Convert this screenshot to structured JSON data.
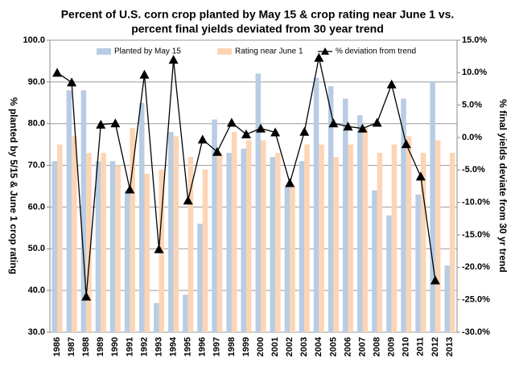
{
  "chart_data": {
    "type": "bar-line",
    "title": [
      "Percent of U.S. corn crop planted by May 15 & crop rating near June 1 vs.",
      "percent final yields deviated from 30 year trend"
    ],
    "y_label": "% planted by 5/15 & June 1 crop rating",
    "y2_label": "% final yields deviate from 30 yr trend",
    "categories": [
      "1986",
      "1987",
      "1988",
      "1989",
      "1990",
      "1991",
      "1992",
      "1993",
      "1994",
      "1995",
      "1996",
      "1997",
      "1998",
      "1999",
      "2000",
      "2001",
      "2002",
      "2003",
      "2004",
      "2005",
      "2006",
      "2007",
      "2008",
      "2009",
      "2010",
      "2011",
      "2012",
      "2013"
    ],
    "series": [
      {
        "name": "Planted by May 15",
        "color": "#b8cce4",
        "kind": "bar",
        "axis": "y",
        "values": [
          71,
          88,
          88,
          71,
          71,
          64,
          85,
          37,
          78,
          39,
          56,
          81,
          73,
          74,
          92,
          72,
          65,
          71,
          91,
          89,
          86,
          82,
          64,
          58,
          86,
          63,
          90,
          46
        ]
      },
      {
        "name": "Rating near June 1",
        "color": "#fcd5b5",
        "kind": "bar",
        "axis": "y",
        "values": [
          75,
          77,
          73,
          73,
          70,
          79,
          68,
          69,
          77,
          72,
          69,
          73,
          78,
          76,
          76,
          73,
          65,
          75,
          75,
          72,
          75,
          79,
          73,
          75,
          77,
          73,
          76,
          73
        ]
      },
      {
        "name": "% deviation from trend",
        "color": "#000000",
        "kind": "line",
        "axis": "y2",
        "values": [
          10,
          8.5,
          -24.5,
          2,
          2.2,
          -8,
          9.7,
          -17.2,
          12,
          -9.7,
          -0.3,
          -2.2,
          2.3,
          0.5,
          1.4,
          0.8,
          -7,
          0.9,
          12.3,
          2.2,
          1.7,
          1.4,
          2.3,
          8.2,
          -1,
          -6,
          -22,
          null
        ]
      }
    ],
    "ylim": [
      30,
      100
    ],
    "yticks": [
      {
        "value": 30,
        "label": "30.0"
      },
      {
        "value": 40,
        "label": "40.0"
      },
      {
        "value": 50,
        "label": "50.0"
      },
      {
        "value": 60,
        "label": "60.0"
      },
      {
        "value": 70,
        "label": "70.0"
      },
      {
        "value": 80,
        "label": "80.0"
      },
      {
        "value": 90,
        "label": "90.0"
      },
      {
        "value": 100,
        "label": "100.0"
      }
    ],
    "y2lim": [
      -30,
      15
    ],
    "y2ticks": [
      {
        "value": -30,
        "label": "-30.0%"
      },
      {
        "value": -25,
        "label": "-25.0%"
      },
      {
        "value": -20,
        "label": "-20.0%"
      },
      {
        "value": -15,
        "label": "-15.0%"
      },
      {
        "value": -10,
        "label": "-10.0%"
      },
      {
        "value": -5,
        "label": "-5.0%"
      },
      {
        "value": 0,
        "label": "0.0%"
      },
      {
        "value": 5,
        "label": "5.0%"
      },
      {
        "value": 10,
        "label": "10.0%"
      },
      {
        "value": 15,
        "label": "15.0%"
      }
    ],
    "grid": true,
    "legend": "top"
  }
}
